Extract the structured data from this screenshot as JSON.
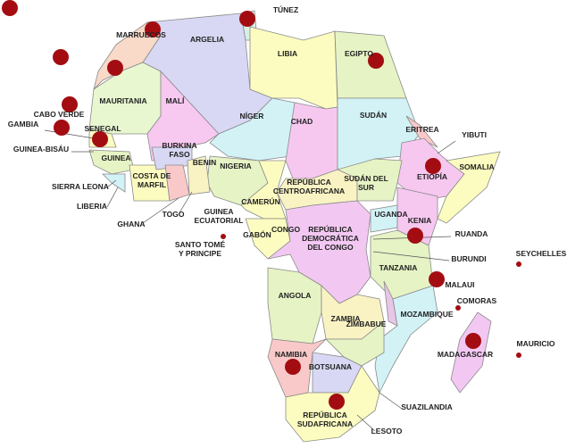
{
  "map": {
    "labels": [
      {
        "lines": [
          "TÚNEZ"
        ]
      },
      {
        "lines": [
          "MARRUECOS"
        ]
      },
      {
        "lines": [
          "ARGELIA"
        ]
      },
      {
        "lines": [
          "LIBIA"
        ]
      },
      {
        "lines": [
          "EGIPTO"
        ]
      },
      {
        "lines": [
          "MAURITANIA"
        ]
      },
      {
        "lines": [
          "MALÍ"
        ]
      },
      {
        "lines": [
          "NÍGER"
        ]
      },
      {
        "lines": [
          "CHAD"
        ]
      },
      {
        "lines": [
          "SUDÁN"
        ]
      },
      {
        "lines": [
          "CABO VERDE"
        ]
      },
      {
        "lines": [
          "GAMBIA"
        ]
      },
      {
        "lines": [
          "SENEGAL"
        ]
      },
      {
        "lines": [
          "GUINEA-BISÁU"
        ]
      },
      {
        "lines": [
          "GUINEA"
        ]
      },
      {
        "lines": [
          "SIERRA LEONA"
        ]
      },
      {
        "lines": [
          "LIBERIA"
        ]
      },
      {
        "lines": [
          "BURKINA",
          "FASO"
        ]
      },
      {
        "lines": [
          "COSTA DE",
          "MARFIL"
        ]
      },
      {
        "lines": [
          "GHANA"
        ]
      },
      {
        "lines": [
          "TOGO"
        ]
      },
      {
        "lines": [
          "BENIN"
        ]
      },
      {
        "lines": [
          "NIGERIA"
        ]
      },
      {
        "lines": [
          "ERITREA"
        ]
      },
      {
        "lines": [
          "YIBUTI"
        ]
      },
      {
        "lines": [
          "ETIOPÍA"
        ]
      },
      {
        "lines": [
          "SOMALIA"
        ]
      },
      {
        "lines": [
          "REPÚBLICA",
          "CENTROAFRICANA"
        ]
      },
      {
        "lines": [
          "SUDÁN DEL",
          "SUR"
        ]
      },
      {
        "lines": [
          "CAMERÚN"
        ]
      },
      {
        "lines": [
          "GUINEA",
          "ECUATORIAL"
        ]
      },
      {
        "lines": [
          "SANTO TOMÉ",
          "Y PRINCIPE"
        ]
      },
      {
        "lines": [
          "GABÓN"
        ]
      },
      {
        "lines": [
          "CONGO"
        ]
      },
      {
        "lines": [
          "REPÚBLICA",
          "DEMOCRÁTICA",
          "DEL CONGO"
        ]
      },
      {
        "lines": [
          "UGANDA"
        ]
      },
      {
        "lines": [
          "KENIA"
        ]
      },
      {
        "lines": [
          "RUANDA"
        ]
      },
      {
        "lines": [
          "BURUNDI"
        ]
      },
      {
        "lines": [
          "TANZANIA"
        ]
      },
      {
        "lines": [
          "SEYCHELLES"
        ]
      },
      {
        "lines": [
          "ANGOLA"
        ]
      },
      {
        "lines": [
          "ZAMBIA"
        ]
      },
      {
        "lines": [
          "MALAUI"
        ]
      },
      {
        "lines": [
          "COMORAS"
        ]
      },
      {
        "lines": [
          "MOZAMBIQUE"
        ]
      },
      {
        "lines": [
          "MADAGASCAR"
        ]
      },
      {
        "lines": [
          "MAURICIO"
        ]
      },
      {
        "lines": [
          "ZIMBABUE"
        ]
      },
      {
        "lines": [
          "NAMIBIA"
        ]
      },
      {
        "lines": [
          "BOTSUANA"
        ]
      },
      {
        "lines": [
          "SUAZILANDIA"
        ]
      },
      {
        "lines": [
          "REPÚBLICA",
          "SUDAFRICANA"
        ]
      },
      {
        "lines": [
          "LESOTO"
        ]
      }
    ]
  }
}
